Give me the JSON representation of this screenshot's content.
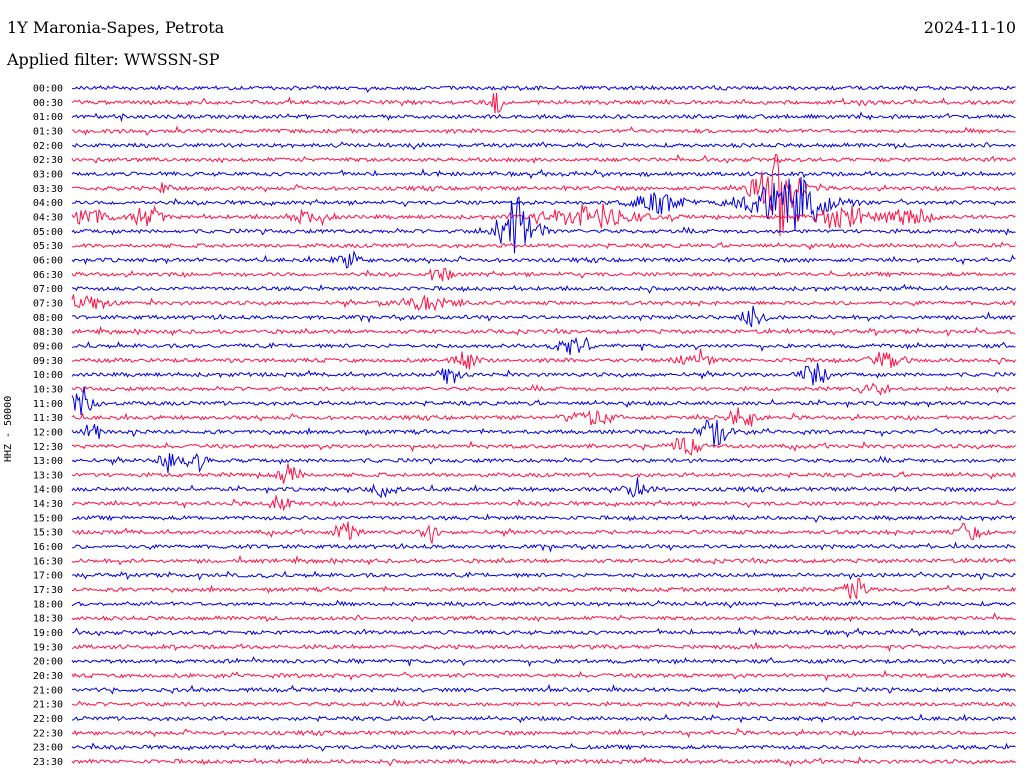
{
  "header": {
    "title": "1Y Maronia-Sapes, Petrota",
    "date": "2024-11-10",
    "filter": "Applied filter: WWSSN-SP"
  },
  "chart_data": {
    "type": "line",
    "ylabel": "HHZ - 50000",
    "row_labels": [
      "00:00",
      "00:30",
      "01:00",
      "01:30",
      "02:00",
      "02:30",
      "03:00",
      "03:30",
      "04:00",
      "04:30",
      "05:00",
      "05:30",
      "06:00",
      "06:30",
      "07:00",
      "07:30",
      "08:00",
      "08:30",
      "09:00",
      "09:30",
      "10:00",
      "10:30",
      "11:00",
      "11:30",
      "12:00",
      "12:30",
      "13:00",
      "13:30",
      "14:00",
      "14:30",
      "15:00",
      "15:30",
      "16:00",
      "16:30",
      "17:00",
      "17:30",
      "18:00",
      "18:30",
      "19:00",
      "19:30",
      "20:00",
      "20:30",
      "21:00",
      "21:30",
      "22:00",
      "22:30",
      "23:00",
      "23:30"
    ],
    "trace_colors": [
      "#0000dd",
      "#ff1144"
    ],
    "events": [
      {
        "row": 1,
        "x": 0.45,
        "amp": 14,
        "w": 0.004
      },
      {
        "row": 7,
        "x": 0.1,
        "amp": 8,
        "w": 0.005
      },
      {
        "row": 8,
        "x": 0.62,
        "amp": 10,
        "w": 0.02
      },
      {
        "row": 9,
        "x": 0.02,
        "amp": 10,
        "w": 0.015
      },
      {
        "row": 9,
        "x": 0.08,
        "amp": 10,
        "w": 0.01
      },
      {
        "row": 9,
        "x": 0.25,
        "amp": 8,
        "w": 0.012
      },
      {
        "row": 9,
        "x": 0.55,
        "amp": 12,
        "w": 0.03
      },
      {
        "row": 9,
        "x": 0.82,
        "amp": 12,
        "w": 0.02
      },
      {
        "row": 9,
        "x": 0.89,
        "amp": 12,
        "w": 0.012
      },
      {
        "row": 10,
        "x": 0.47,
        "amp": 30,
        "w": 0.015
      },
      {
        "row": 7,
        "x": 0.745,
        "amp": 50,
        "w": 0.015
      },
      {
        "row": 8,
        "x": 0.76,
        "amp": 25,
        "w": 0.03
      },
      {
        "row": 12,
        "x": 0.29,
        "amp": 10,
        "w": 0.008
      },
      {
        "row": 13,
        "x": 0.39,
        "amp": 8,
        "w": 0.008
      },
      {
        "row": 15,
        "x": 0.01,
        "amp": 6,
        "w": 0.02
      },
      {
        "row": 15,
        "x": 0.38,
        "amp": 6,
        "w": 0.02
      },
      {
        "row": 16,
        "x": 0.72,
        "amp": 10,
        "w": 0.008
      },
      {
        "row": 18,
        "x": 0.53,
        "amp": 8,
        "w": 0.012
      },
      {
        "row": 19,
        "x": 0.42,
        "amp": 10,
        "w": 0.01
      },
      {
        "row": 19,
        "x": 0.66,
        "amp": 12,
        "w": 0.01
      },
      {
        "row": 19,
        "x": 0.86,
        "amp": 10,
        "w": 0.012
      },
      {
        "row": 20,
        "x": 0.4,
        "amp": 8,
        "w": 0.008
      },
      {
        "row": 20,
        "x": 0.79,
        "amp": 12,
        "w": 0.01
      },
      {
        "row": 21,
        "x": 0.85,
        "amp": 7,
        "w": 0.01
      },
      {
        "row": 22,
        "x": 0.01,
        "amp": 14,
        "w": 0.01
      },
      {
        "row": 23,
        "x": 0.55,
        "amp": 8,
        "w": 0.015
      },
      {
        "row": 23,
        "x": 0.71,
        "amp": 10,
        "w": 0.012
      },
      {
        "row": 24,
        "x": 0.02,
        "amp": 10,
        "w": 0.008
      },
      {
        "row": 24,
        "x": 0.68,
        "amp": 16,
        "w": 0.01
      },
      {
        "row": 25,
        "x": 0.65,
        "amp": 10,
        "w": 0.01
      },
      {
        "row": 26,
        "x": 0.1,
        "amp": 10,
        "w": 0.006
      },
      {
        "row": 26,
        "x": 0.13,
        "amp": 12,
        "w": 0.008
      },
      {
        "row": 27,
        "x": 0.23,
        "amp": 12,
        "w": 0.008
      },
      {
        "row": 28,
        "x": 0.33,
        "amp": 8,
        "w": 0.008
      },
      {
        "row": 28,
        "x": 0.6,
        "amp": 10,
        "w": 0.008
      },
      {
        "row": 29,
        "x": 0.22,
        "amp": 8,
        "w": 0.008
      },
      {
        "row": 31,
        "x": 0.29,
        "amp": 10,
        "w": 0.008
      },
      {
        "row": 31,
        "x": 0.38,
        "amp": 7,
        "w": 0.008
      },
      {
        "row": 31,
        "x": 0.95,
        "amp": 10,
        "w": 0.008
      },
      {
        "row": 35,
        "x": 0.83,
        "amp": 14,
        "w": 0.008
      }
    ]
  }
}
